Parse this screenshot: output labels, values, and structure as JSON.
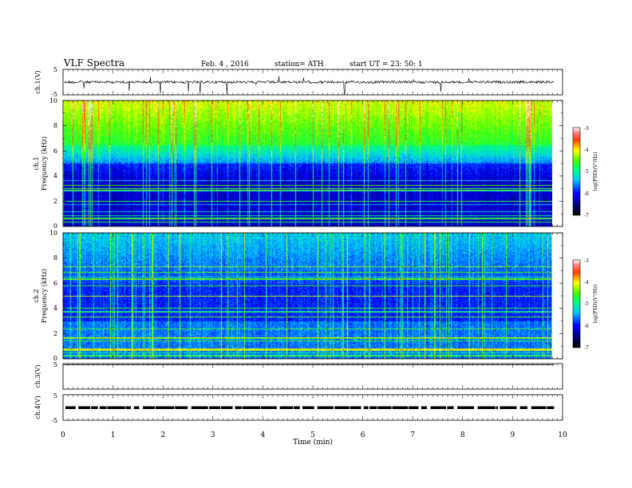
{
  "header": {
    "title": "VLF  Spectra",
    "date": "Feb. 4  , 2016",
    "station": "station= ATH",
    "start": "start  UT  =   23: 50: 1"
  },
  "chart_data": [
    {
      "type": "line",
      "ylabel": "ch.1(V)",
      "ylim": [
        -5,
        5
      ],
      "y_ticks": [
        "5",
        "-5"
      ],
      "xlim": [
        0,
        10
      ],
      "baseline": 0
    },
    {
      "type": "heatmap",
      "ylabel": "ch.1\nFrequency  (kHz)",
      "ylabel_line1": "ch.1",
      "ylabel_line2": "Frequency  (kHz)",
      "ylim": [
        0,
        10
      ],
      "y_ticks": [
        "0",
        "2",
        "4",
        "6",
        "8",
        "10"
      ],
      "xlim": [
        0,
        9.8
      ],
      "colorbar": {
        "label": "log(PSD)(V²/Hz)",
        "range": [
          -7,
          -3
        ],
        "ticks": [
          "-3",
          "-4",
          "-5",
          "-6",
          "-7"
        ]
      }
    },
    {
      "type": "heatmap",
      "ylabel": "ch.2\nFrequency  (kHz)",
      "ylabel_line1": "ch.2",
      "ylabel_line2": "Frequency  (kHz)",
      "ylim": [
        0,
        10
      ],
      "y_ticks": [
        "0",
        "2",
        "4",
        "6",
        "8",
        "10"
      ],
      "xlim": [
        0,
        9.8
      ],
      "colorbar": {
        "label": "log(PSD)(V²/Hz)",
        "range": [
          -7,
          -3
        ],
        "ticks": [
          "-3",
          "-4",
          "-5",
          "-6",
          "-7"
        ]
      }
    },
    {
      "type": "line",
      "ylabel": "ch.3(V)",
      "ylim": [
        -5,
        5
      ],
      "y_ticks": [
        "5",
        ""
      ],
      "xlim": [
        0,
        10
      ],
      "baseline": 0
    },
    {
      "type": "line",
      "ylabel": "ch.4(V)",
      "ylim": [
        -5,
        5
      ],
      "y_ticks": [
        "5",
        "-5"
      ],
      "xlim": [
        0,
        10
      ],
      "baseline": 0
    }
  ],
  "x_axis": {
    "label": "Time  (min)",
    "ticks": [
      "0",
      "1",
      "2",
      "3",
      "4",
      "5",
      "6",
      "7",
      "8",
      "9",
      "10"
    ]
  }
}
